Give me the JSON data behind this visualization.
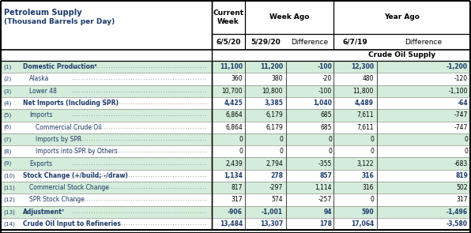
{
  "title_line1": "Petroleum Supply",
  "title_line2": "(Thousand Barrels per Day)",
  "col_header1": [
    "",
    "Current\nWeek",
    "Week Ago",
    "",
    "Year Ago",
    ""
  ],
  "col_header2": [
    "",
    "6/5/20",
    "5/29/20",
    "Difference",
    "6/7/19",
    "Difference"
  ],
  "section_header": "Crude Oil Supply",
  "rows": [
    {
      "num": "(1)",
      "label": "Domestic Production⁶",
      "bold": true,
      "indent": 0,
      "vals": [
        "11,100",
        "11,200",
        "-100",
        "12,300",
        "-1,200"
      ],
      "green": true
    },
    {
      "num": "(2)",
      "label": "Alaska",
      "bold": false,
      "indent": 1,
      "vals": [
        "360",
        "380",
        "-20",
        "480",
        "-120"
      ],
      "green": false
    },
    {
      "num": "(3)",
      "label": "Lower 48",
      "bold": false,
      "indent": 1,
      "vals": [
        "10,700",
        "10,800",
        "-100",
        "11,800",
        "-1,100"
      ],
      "green": true
    },
    {
      "num": "(4)",
      "label": "Net Imports (Including SPR)",
      "bold": true,
      "indent": 0,
      "vals": [
        "4,425",
        "3,385",
        "1,040",
        "4,489",
        "-64"
      ],
      "green": false
    },
    {
      "num": "(5)",
      "label": "Imports",
      "bold": false,
      "indent": 1,
      "vals": [
        "6,864",
        "6,179",
        "685",
        "7,611",
        "-747"
      ],
      "green": true
    },
    {
      "num": "(6)",
      "label": "Commercial Crude Oil",
      "bold": false,
      "indent": 2,
      "vals": [
        "6,864",
        "6,179",
        "685",
        "7,611",
        "-747"
      ],
      "green": false
    },
    {
      "num": "(7)",
      "label": "Imports by SPR",
      "bold": false,
      "indent": 2,
      "vals": [
        "0",
        "0",
        "0",
        "0",
        "0"
      ],
      "green": true
    },
    {
      "num": "(8)",
      "label": "Imports into SPR by Others",
      "bold": false,
      "indent": 2,
      "vals": [
        "0",
        "0",
        "0",
        "0",
        "0"
      ],
      "green": false
    },
    {
      "num": "(9)",
      "label": "Exports",
      "bold": false,
      "indent": 1,
      "vals": [
        "2,439",
        "2,794",
        "-355",
        "3,122",
        "-683"
      ],
      "green": true
    },
    {
      "num": "(10)",
      "label": "Stock Change (+/build; -/draw)",
      "bold": true,
      "indent": 0,
      "vals": [
        "1,134",
        "278",
        "857",
        "316",
        "819"
      ],
      "green": false
    },
    {
      "num": "(11)",
      "label": "Commercial Stock Change",
      "bold": false,
      "indent": 1,
      "vals": [
        "817",
        "-297",
        "1,114",
        "316",
        "502"
      ],
      "green": true
    },
    {
      "num": "(12)",
      "label": "SPR Stock Change",
      "bold": false,
      "indent": 1,
      "vals": [
        "317",
        "574",
        "-257",
        "0",
        "317"
      ],
      "green": false
    },
    {
      "num": "(13)",
      "label": "Adjustment⁷",
      "bold": true,
      "indent": 0,
      "vals": [
        "-906",
        "-1,001",
        "94",
        "590",
        "-1,496"
      ],
      "green": true
    },
    {
      "num": "(14)",
      "label": "Crude Oil Input to Refineries",
      "bold": true,
      "indent": 0,
      "vals": [
        "13,484",
        "13,307",
        "178",
        "17,064",
        "-3,580"
      ],
      "green": false
    }
  ],
  "bg_color": "#ffffff",
  "green_bg": "#d4edda",
  "white_bg": "#ffffff",
  "label_col_color": "#1a3a6b",
  "num_col_color": "#1a3a6b",
  "val_color": "#000000",
  "bold_val_color": "#1a3a6b",
  "header_text_color": "#000000",
  "border_color": "#000000",
  "thin_line": "#888888",
  "dot_color": "#555555"
}
